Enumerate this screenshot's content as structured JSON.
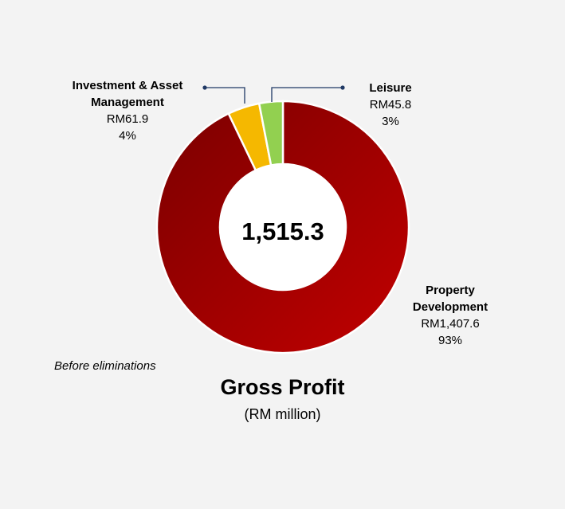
{
  "chart_data": {
    "type": "pie",
    "style": "donut",
    "title": "Gross Profit",
    "subtitle": "(RM million)",
    "center_label": "1,515.3",
    "note": "Before eliminations",
    "slices": [
      {
        "name": "Property",
        "name2": "Development",
        "value": 1407.6,
        "value_label": "RM1,407.6",
        "pct_label": "93%",
        "color": "#b30000"
      },
      {
        "name": "Investment & Asset",
        "name2": "Management",
        "value": 61.9,
        "value_label": "RM61.9",
        "pct_label": "4%",
        "color": "#f5b800"
      },
      {
        "name": "Leisure",
        "name2": "",
        "value": 45.8,
        "value_label": "RM45.8",
        "pct_label": "3%",
        "color": "#92d050"
      }
    ]
  }
}
